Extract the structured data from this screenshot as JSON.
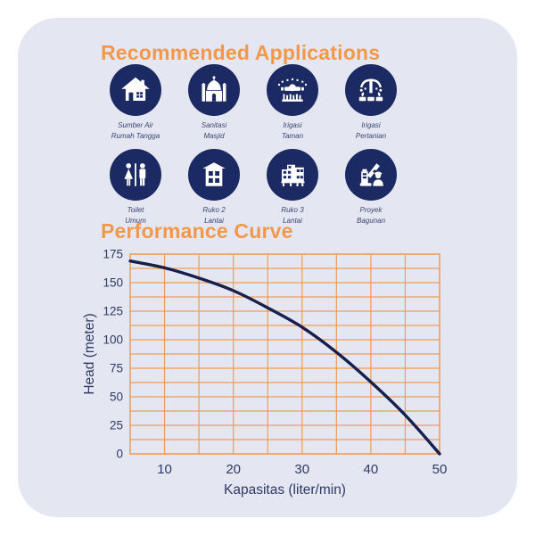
{
  "colors": {
    "card_bg": "#E4E7F1",
    "heading_orange": "#F3984A",
    "icon_navy": "#1B2A63",
    "grid_orange": "#F09B52",
    "curve_navy": "#161F4D",
    "text_navy": "#2E3966"
  },
  "sections": {
    "applications_title": "Recommended Applications",
    "performance_title": "Performance Curve"
  },
  "applications": {
    "items": [
      {
        "label": "Sumber Air\nRumah Tangga",
        "icon": "house-icon"
      },
      {
        "label": "Sanitasi\nMasjid",
        "icon": "mosque-icon"
      },
      {
        "label": "Irigasi\nTaman",
        "icon": "sprinkler-icon"
      },
      {
        "label": "Irigasi\nPertanian",
        "icon": "irrigation-icon"
      },
      {
        "label": "Toilet\nUmum",
        "icon": "restroom-icon"
      },
      {
        "label": "Ruko 2\nLantai",
        "icon": "shophouse-2-icon"
      },
      {
        "label": "Ruko 3\nLantai",
        "icon": "shophouse-3-icon"
      },
      {
        "label": "Proyek\nBagunan",
        "icon": "crane-icon"
      }
    ]
  },
  "chart_data": {
    "type": "line",
    "title": "Performance Curve",
    "xlabel": "Kapasitas (liter/min)",
    "ylabel": "Head (meter)",
    "xlim": [
      5,
      50
    ],
    "ylim": [
      0,
      175
    ],
    "x_ticks": [
      10,
      20,
      30,
      40,
      50
    ],
    "y_ticks": [
      0,
      25,
      50,
      75,
      100,
      125,
      150,
      175
    ],
    "x_grid_step": 5,
    "y_grid_step": 12.5,
    "grid": true,
    "legend": "none",
    "series": [
      {
        "name": "head-vs-capacity",
        "x": [
          5,
          10,
          15,
          20,
          25,
          30,
          35,
          40,
          45,
          50
        ],
        "y": [
          169,
          163,
          154,
          143,
          128,
          111,
          89,
          63,
          34,
          0
        ]
      }
    ]
  }
}
